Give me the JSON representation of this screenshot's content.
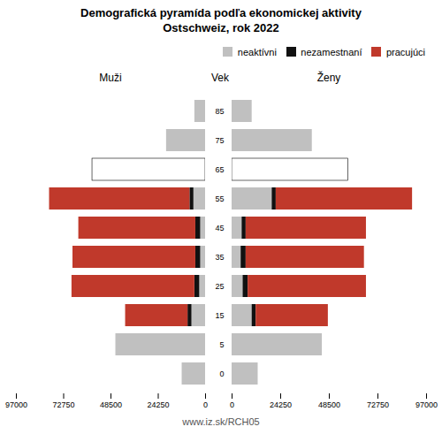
{
  "chart_data": [
    {
      "type": "bar",
      "orientation": "horizontal",
      "stacked": true,
      "title": "Demografická pyramída podľa ekonomickej aktivity",
      "subtitle": "Ostschweiz, rok 2022",
      "xlabel": "Muži",
      "categories": [
        0,
        5,
        15,
        25,
        35,
        45,
        55,
        65,
        75,
        85
      ],
      "series": [
        {
          "name": "neaktívni",
          "color": "#c0c0c0",
          "values": [
            12000,
            46000,
            7000,
            3000,
            2500,
            2500,
            6000,
            null,
            20000,
            5500
          ]
        },
        {
          "name": "nezamestnaní",
          "color": "#111111",
          "values": [
            0,
            0,
            2000,
            2500,
            2500,
            2500,
            2000,
            null,
            0,
            0
          ]
        },
        {
          "name": "pracujúci",
          "color": "#c0392b",
          "values": [
            0,
            0,
            32000,
            63000,
            63000,
            60000,
            72000,
            null,
            0,
            0
          ]
        },
        {
          "color": "#ffffff",
          "values": [
            null,
            null,
            null,
            null,
            null,
            null,
            null,
            58000,
            null,
            null
          ]
        }
      ],
      "xlim": [
        97000,
        0
      ],
      "xticks": [
        0,
        24250,
        48500,
        72750,
        97000
      ],
      "tick_labels": "x"
    },
    {
      "type": "bar",
      "orientation": "horizontal",
      "stacked": true,
      "xlabel": "Ženy",
      "ylabel": "Vek",
      "caption": "www.iz.sk/RCH05",
      "categories": [
        0,
        5,
        15,
        25,
        35,
        45,
        55,
        65,
        75,
        85
      ],
      "series": [
        {
          "name": "neaktívni",
          "color": "#c0c0c0",
          "values": [
            13000,
            45000,
            10000,
            5500,
            4500,
            5000,
            20000,
            null,
            40000,
            10000
          ]
        },
        {
          "name": "nezamestnaní",
          "color": "#111111",
          "values": [
            0,
            0,
            2000,
            2500,
            2500,
            2000,
            2000,
            null,
            0,
            0
          ]
        },
        {
          "name": "pracujúci",
          "color": "#c0392b",
          "values": [
            0,
            0,
            36000,
            59000,
            59000,
            60000,
            68000,
            null,
            0,
            0
          ]
        },
        {
          "color": "#ffffff",
          "values": [
            null,
            null,
            null,
            null,
            null,
            null,
            null,
            58000,
            null,
            null
          ]
        }
      ],
      "xlim": [
        0,
        97000
      ],
      "xticks": [
        0,
        24250,
        48500,
        72750,
        97000
      ],
      "legend": "upper right"
    }
  ]
}
